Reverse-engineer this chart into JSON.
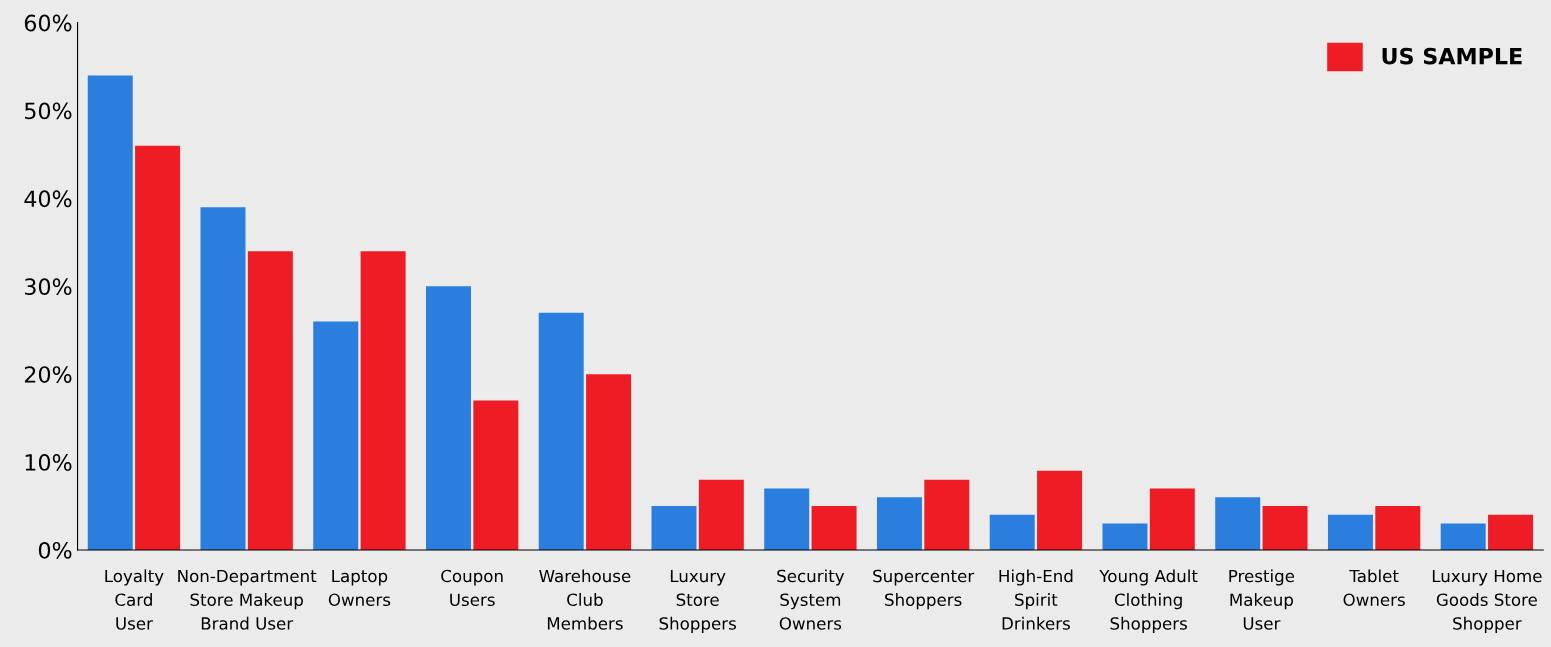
{
  "chart_data": {
    "type": "bar",
    "categories": [
      "Loyalty\nCard\nUser",
      "Non-Department\nStore Makeup\nBrand User",
      "Laptop\nOwners",
      "Coupon\nUsers",
      "Warehouse\nClub\nMembers",
      "Luxury\nStore\nShoppers",
      "Security\nSystem\nOwners",
      "Supercenter\nShoppers",
      "High-End\nSpirit\nDrinkers",
      "Young Adult\nClothing\nShoppers",
      "Prestige\nMakeup\nUser",
      "Tablet\nOwners",
      "Luxury Home\nGoods Store\nShopper"
    ],
    "series": [
      {
        "color": "#2a7fde",
        "values": [
          54,
          39,
          26,
          30,
          27,
          5,
          7,
          6,
          4,
          3,
          6,
          4,
          3
        ]
      },
      {
        "name": "US SAMPLE",
        "color": "#ee1c25",
        "values": [
          46,
          34,
          34,
          17,
          20,
          8,
          5,
          8,
          9,
          7,
          5,
          5,
          4
        ]
      }
    ],
    "ylim": [
      0,
      60
    ],
    "yticks": [
      {
        "value": 0,
        "label": "0%"
      },
      {
        "value": 10,
        "label": "10%"
      },
      {
        "value": 20,
        "label": "20%"
      },
      {
        "value": 30,
        "label": "30%"
      },
      {
        "value": 40,
        "label": "40%"
      },
      {
        "value": 50,
        "label": "50%"
      },
      {
        "value": 60,
        "label": "60%"
      }
    ],
    "grid": false,
    "legend": "top right"
  }
}
